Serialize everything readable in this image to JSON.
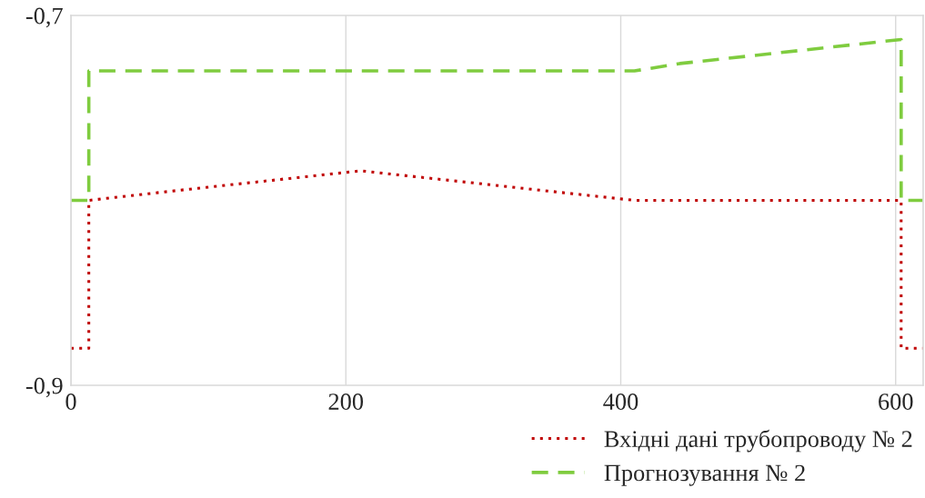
{
  "chart_data": {
    "type": "line",
    "xlim": [
      0,
      620
    ],
    "xticks": [
      0,
      200,
      400,
      600
    ],
    "ylim": [
      -0.9,
      -0.7
    ],
    "yticks": [
      {
        "value": -0.9,
        "label": "-0,9"
      },
      {
        "value": -0.7,
        "label": "-0,7"
      }
    ],
    "grid": "x",
    "legend": "bottom right",
    "marker": "none",
    "series": [
      {
        "name": "Вхідні дані трубопроводу № 2",
        "color": "#c00000",
        "line_style": "dotted",
        "x": [
          0,
          13,
          13,
          73,
          211,
          410,
          604,
          604,
          620
        ],
        "values": [
          -0.88,
          -0.88,
          -0.8,
          -0.795,
          -0.784,
          -0.8,
          -0.8,
          -0.88,
          -0.88
        ]
      },
      {
        "name": "Прогнозування № 2",
        "color": "#7fcc3f",
        "line_style": "dashed",
        "x": [
          0,
          13,
          13,
          410,
          443,
          604,
          604,
          620
        ],
        "values": [
          -0.8,
          -0.8,
          -0.73,
          -0.73,
          -0.726,
          -0.713,
          -0.8,
          -0.8
        ]
      }
    ]
  }
}
